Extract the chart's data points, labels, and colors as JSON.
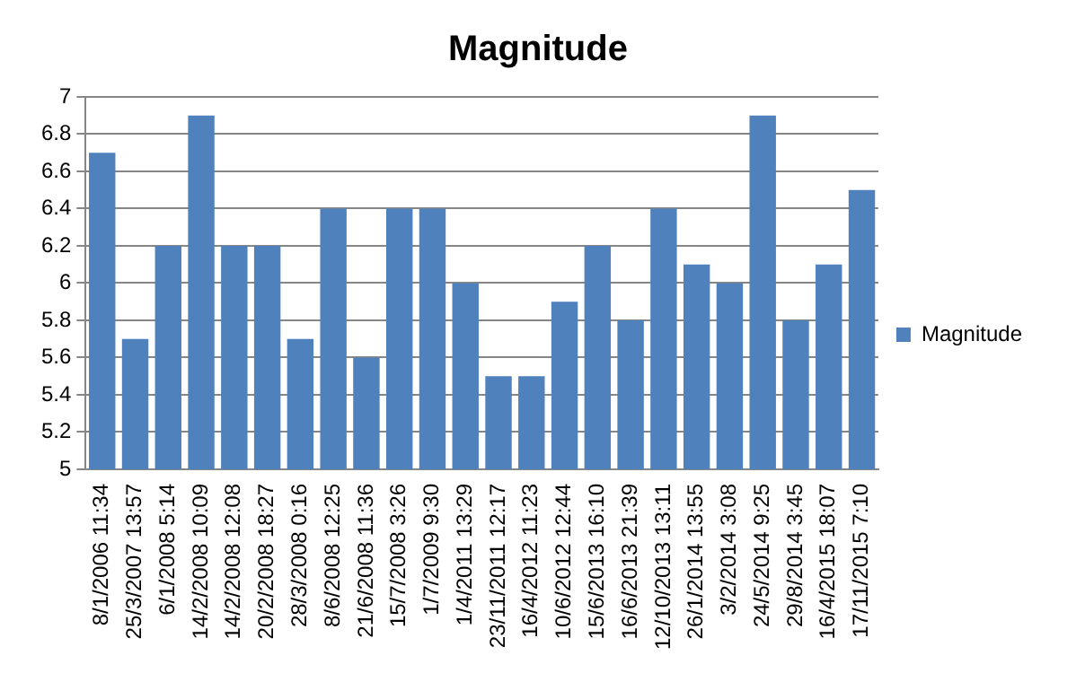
{
  "chart_data": {
    "type": "bar",
    "title": "Magnitude",
    "categories": [
      "8/1/2006 11:34",
      "25/3/2007 13:57",
      "6/1/2008 5:14",
      "14/2/2008 10:09",
      "14/2/2008 12:08",
      "20/2/2008 18:27",
      "28/3/2008 0:16",
      "8/6/2008 12:25",
      "21/6/2008 11:36",
      "15/7/2008 3:26",
      "1/7/2009 9:30",
      "1/4/2011 13:29",
      "23/11/2011 12:17",
      "16/4/2012 11:23",
      "10/6/2012 12:44",
      "15/6/2013 16:10",
      "16/6/2013 21:39",
      "12/10/2013 13:11",
      "26/1/2014 13:55",
      "3/2/2014 3:08",
      "24/5/2014 9:25",
      "29/8/2014 3:45",
      "16/4/2015 18:07",
      "17/11/2015 7:10"
    ],
    "series": [
      {
        "name": "Magnitude",
        "color": "#4f81bd",
        "values": [
          6.7,
          5.7,
          6.2,
          6.9,
          6.2,
          6.2,
          5.7,
          6.4,
          5.6,
          6.4,
          6.4,
          6.0,
          5.5,
          5.5,
          5.9,
          6.2,
          5.8,
          6.4,
          6.1,
          6.0,
          6.9,
          5.8,
          6.1,
          6.5
        ]
      }
    ],
    "ylim": [
      5,
      7
    ],
    "yticks": [
      5,
      5.2,
      5.4,
      5.6,
      5.8,
      6,
      6.2,
      6.4,
      6.6,
      6.8,
      7
    ],
    "grid": "y",
    "legend": "right"
  }
}
